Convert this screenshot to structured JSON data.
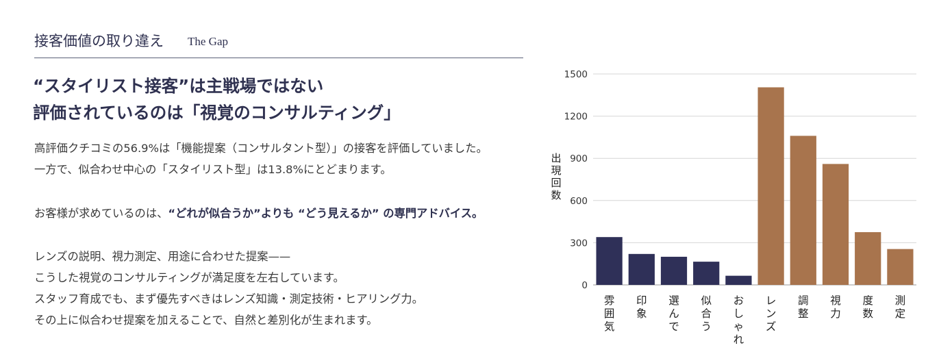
{
  "section": {
    "title": "接客価値の取り違え",
    "subtitle": "The Gap"
  },
  "headline": {
    "line1": "“スタイリスト接客”は主戦場ではない",
    "line2": "評価されているのは「視覚のコンサルティング」"
  },
  "body": {
    "p1_line1": "高評価クチコミの56.9%は「機能提案（コンサルタント型）」の接客を評価していました。",
    "p1_line2": "一方で、似合わせ中心の「スタイリスト型」は13.8%にとどまります。",
    "p2_pre": "お客様が求めているのは、",
    "p2_bold": "“どれが似合うか”よりも “どう見えるか” の専門アドバイス。",
    "p3_line1": "レンズの説明、視力測定、用途に合わせた提案——",
    "p3_line2": "こうした視覚のコンサルティングが満足度を左右しています。",
    "p3_line3": "スタッフ育成でも、まず優先すべきはレンズ知識・測定技術・ヒアリング力。",
    "p3_line4": "その上に似合わせ提案を加えることで、自然と差別化が生まれます。"
  },
  "chart_data": {
    "type": "bar",
    "title": "",
    "xlabel": "",
    "ylabel": "出現回数",
    "categories": [
      "雰囲気",
      "印象",
      "選んで",
      "似合う",
      "おしゃれ",
      "レンズ",
      "調整",
      "視力",
      "度数",
      "測定"
    ],
    "values": [
      340,
      220,
      200,
      165,
      65,
      1405,
      1060,
      860,
      375,
      255
    ],
    "bar_colors": [
      "#2f3058",
      "#2f3058",
      "#2f3058",
      "#2f3058",
      "#2f3058",
      "#a8744d",
      "#a8744d",
      "#a8744d",
      "#a8744d",
      "#a8744d"
    ],
    "yticks": [
      0,
      300,
      600,
      900,
      1200,
      1500
    ],
    "ylim": [
      0,
      1500
    ],
    "grid": true
  }
}
